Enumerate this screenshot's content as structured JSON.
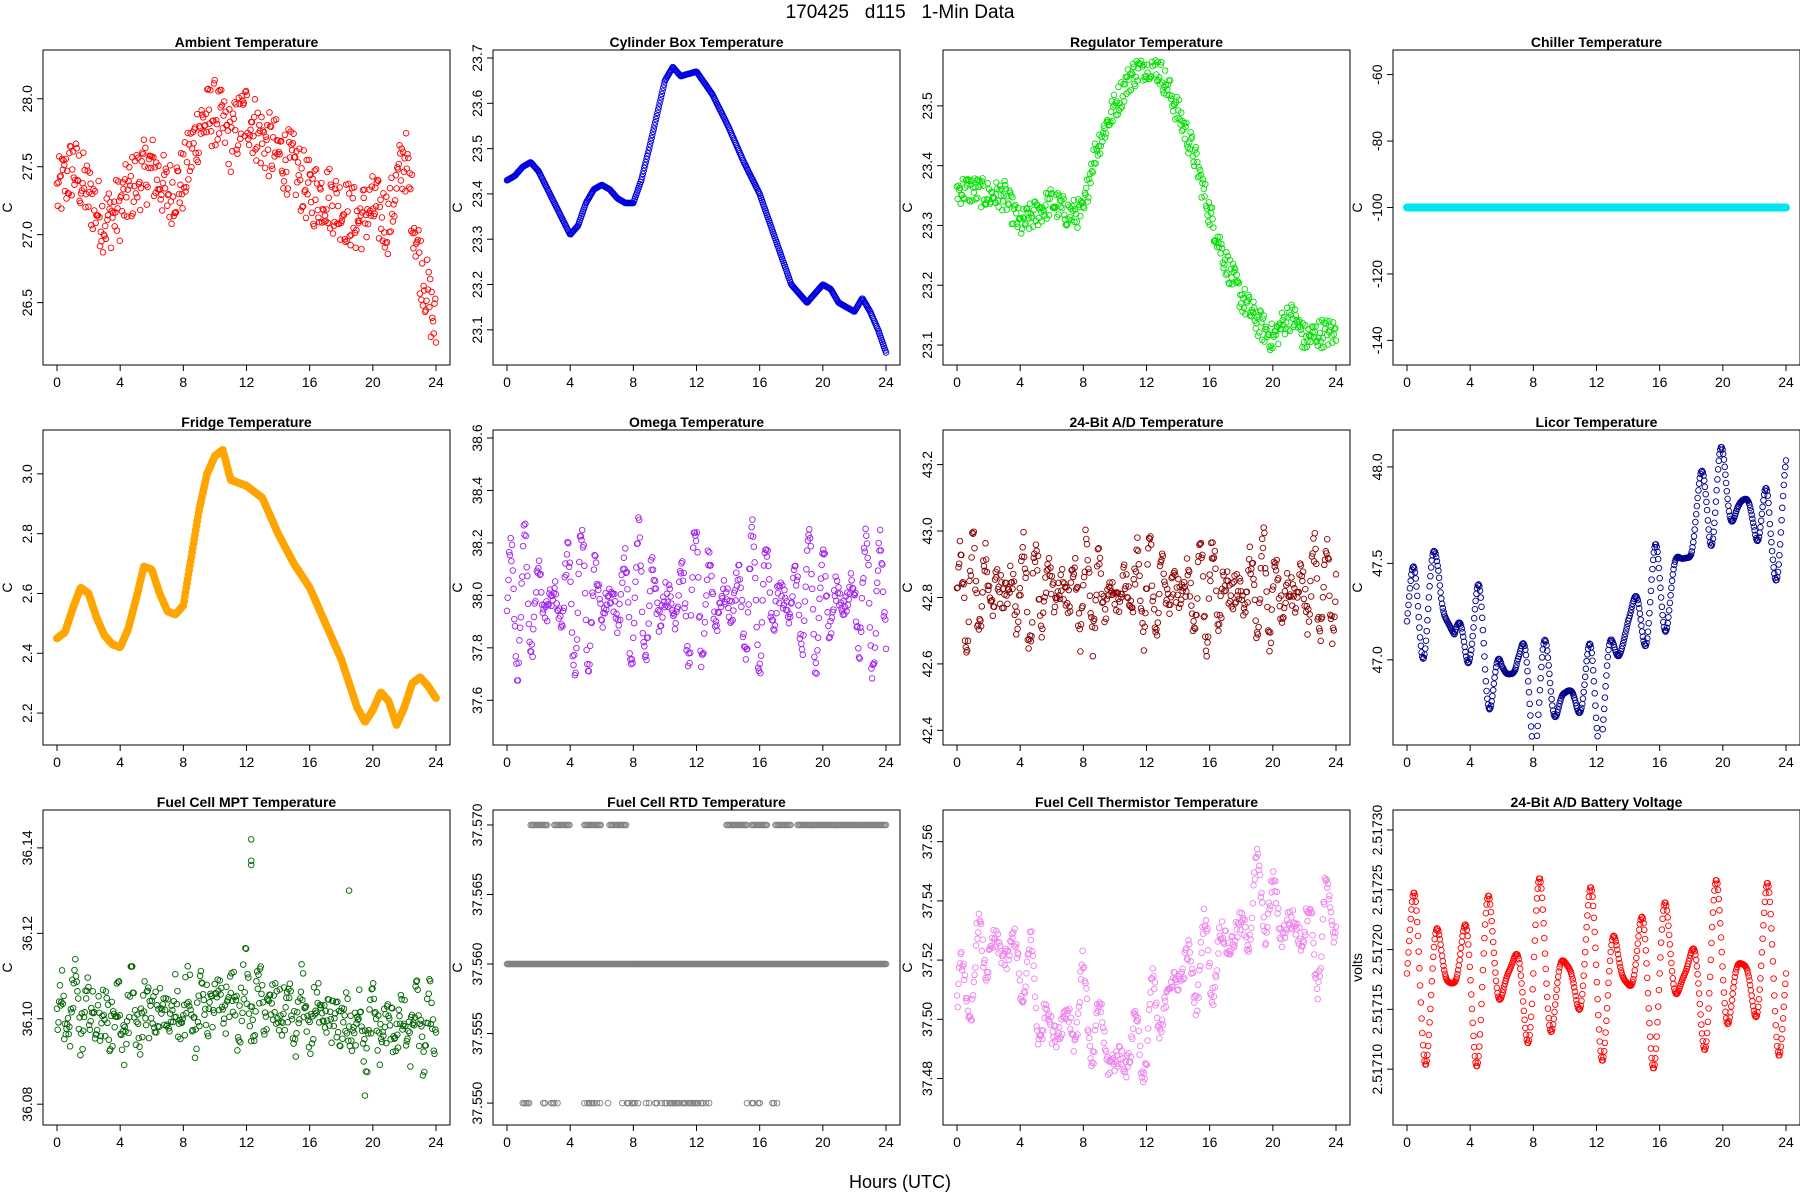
{
  "page": {
    "title": "170425   d115   1-Min Data",
    "xlabel": "Hours (UTC)"
  },
  "chart_data": [
    {
      "type": "scatter",
      "title": "Ambient Temperature",
      "ylabel": "C",
      "color": "#ff0000",
      "marker": "open-circle",
      "xlim": [
        0,
        24
      ],
      "ylim": [
        26.1,
        28.3
      ],
      "xticks": [
        0,
        4,
        8,
        12,
        16,
        20,
        24
      ],
      "yticks": [
        26.5,
        27.0,
        27.5,
        28.0
      ],
      "ytick_labels": [
        "26.5",
        "27.0",
        "27.5",
        "28.0"
      ],
      "x": [
        0,
        1,
        2,
        3,
        4,
        5,
        6,
        7,
        8,
        9,
        10,
        11,
        12,
        13,
        14,
        15,
        16,
        17,
        18,
        19,
        20,
        21,
        22,
        23,
        24
      ],
      "y": [
        27.3,
        27.5,
        27.3,
        27.1,
        27.2,
        27.4,
        27.5,
        27.3,
        27.4,
        27.8,
        27.9,
        27.7,
        27.9,
        27.7,
        27.6,
        27.5,
        27.3,
        27.3,
        27.2,
        27.1,
        27.2,
        27.1,
        27.6,
        26.8,
        26.3
      ],
      "spread": 0.25
    },
    {
      "type": "scatter",
      "title": "Cylinder Box Temperature",
      "ylabel": "C",
      "color": "#0000dd",
      "marker": "open-circle",
      "xlim": [
        0,
        24
      ],
      "ylim": [
        23.04,
        23.7
      ],
      "xticks": [
        0,
        4,
        8,
        12,
        16,
        20,
        24
      ],
      "yticks": [
        23.1,
        23.2,
        23.3,
        23.4,
        23.5,
        23.6,
        23.7
      ],
      "ytick_labels": [
        "23.1",
        "23.2",
        "23.3",
        "23.4",
        "23.5",
        "23.6",
        "23.7"
      ],
      "x": [
        0,
        0.5,
        1,
        1.5,
        2,
        3,
        4,
        4.5,
        5,
        5.5,
        6,
        6.5,
        7,
        7.5,
        8,
        8.5,
        9,
        10,
        10.5,
        11,
        12,
        13,
        14,
        15,
        16,
        17,
        18,
        19,
        19.5,
        20,
        20.5,
        21,
        22,
        22.5,
        23,
        23.5,
        24
      ],
      "y": [
        23.43,
        23.44,
        23.46,
        23.47,
        23.45,
        23.38,
        23.31,
        23.33,
        23.38,
        23.41,
        23.42,
        23.41,
        23.39,
        23.38,
        23.38,
        23.43,
        23.5,
        23.65,
        23.68,
        23.66,
        23.67,
        23.62,
        23.55,
        23.47,
        23.4,
        23.3,
        23.2,
        23.16,
        23.18,
        23.2,
        23.19,
        23.16,
        23.14,
        23.17,
        23.14,
        23.1,
        23.05
      ],
      "spread": 0
    },
    {
      "type": "scatter",
      "title": "Regulator Temperature",
      "ylabel": "C",
      "color": "#00e000",
      "marker": "open-circle",
      "xlim": [
        0,
        24
      ],
      "ylim": [
        23.08,
        23.58
      ],
      "xticks": [
        0,
        4,
        8,
        12,
        16,
        20,
        24
      ],
      "yticks": [
        23.1,
        23.2,
        23.3,
        23.4,
        23.5
      ],
      "ytick_labels": [
        "23.1",
        "23.2",
        "23.3",
        "23.4",
        "23.5"
      ],
      "x": [
        0,
        1,
        2,
        3,
        4,
        5,
        6,
        7,
        8,
        8.5,
        9,
        10,
        11,
        12,
        12.5,
        13,
        14,
        15,
        16,
        17,
        18,
        19,
        20,
        21,
        21.5,
        22,
        23,
        24
      ],
      "y": [
        23.36,
        23.36,
        23.35,
        23.35,
        23.3,
        23.32,
        23.34,
        23.32,
        23.32,
        23.4,
        23.44,
        23.5,
        23.55,
        23.57,
        23.57,
        23.55,
        23.49,
        23.42,
        23.32,
        23.24,
        23.18,
        23.14,
        23.11,
        23.15,
        23.14,
        23.11,
        23.12,
        23.12
      ],
      "spread": 0.025
    },
    {
      "type": "scatter",
      "title": "Chiller Temperature",
      "ylabel": "C",
      "color": "#00e5ee",
      "marker": "filled-circle",
      "xlim": [
        0,
        24
      ],
      "ylim": [
        -145,
        -55
      ],
      "xticks": [
        0,
        4,
        8,
        12,
        16,
        20,
        24
      ],
      "yticks": [
        -140,
        -120,
        -100,
        -80,
        -60
      ],
      "ytick_labels": [
        "-140",
        "-120",
        "-100",
        "-80",
        "-60"
      ],
      "x": [
        0,
        24
      ],
      "y": [
        -100,
        -100
      ],
      "spread": 0
    },
    {
      "type": "scatter",
      "title": "Fridge Temperature",
      "ylabel": "C",
      "color": "#ffa500",
      "marker": "filled-circle",
      "xlim": [
        0,
        24
      ],
      "ylim": [
        2.12,
        3.12
      ],
      "xticks": [
        0,
        4,
        8,
        12,
        16,
        20,
        24
      ],
      "yticks": [
        2.2,
        2.4,
        2.6,
        2.8,
        3.0
      ],
      "ytick_labels": [
        "2.2",
        "2.4",
        "2.6",
        "2.8",
        "3.0"
      ],
      "x": [
        0,
        0.5,
        1,
        1.5,
        2,
        2.5,
        3,
        3.5,
        4,
        4.5,
        5,
        5.5,
        6,
        6.5,
        7,
        7.5,
        8,
        8.5,
        9,
        9.5,
        10,
        10.5,
        11,
        12,
        13,
        14,
        15,
        16,
        17,
        18,
        19,
        19.5,
        20,
        20.5,
        21,
        21.5,
        22,
        22.5,
        23,
        23.5,
        24
      ],
      "y": [
        2.45,
        2.47,
        2.55,
        2.62,
        2.6,
        2.52,
        2.46,
        2.43,
        2.42,
        2.48,
        2.58,
        2.69,
        2.68,
        2.6,
        2.54,
        2.53,
        2.56,
        2.72,
        2.88,
        3.0,
        3.06,
        3.08,
        2.98,
        2.96,
        2.92,
        2.8,
        2.7,
        2.62,
        2.5,
        2.38,
        2.22,
        2.17,
        2.21,
        2.27,
        2.24,
        2.16,
        2.22,
        2.3,
        2.32,
        2.29,
        2.25
      ],
      "spread": 0
    },
    {
      "type": "scatter",
      "title": "Omega Temperature",
      "ylabel": "C",
      "color": "#a020f0",
      "marker": "open-circle",
      "xlim": [
        0,
        24
      ],
      "ylim": [
        37.46,
        38.6
      ],
      "xticks": [
        0,
        4,
        8,
        12,
        16,
        20,
        24
      ],
      "yticks": [
        37.6,
        37.8,
        38.0,
        38.2,
        38.4,
        38.6
      ],
      "ytick_labels": [
        "37.6",
        "37.8",
        "38.0",
        "38.2",
        "38.4",
        "38.6"
      ],
      "x": [
        0,
        24
      ],
      "y": [
        37.98,
        37.98
      ],
      "osc": 0.28,
      "period": 0.9,
      "spread": 0.05
    },
    {
      "type": "scatter",
      "title": "24-Bit A/D Temperature",
      "ylabel": "C",
      "color": "#8b0000",
      "marker": "open-circle",
      "xlim": [
        0,
        24
      ],
      "ylim": [
        42.38,
        43.28
      ],
      "xticks": [
        0,
        4,
        8,
        12,
        16,
        20,
        24
      ],
      "yticks": [
        42.4,
        42.6,
        42.8,
        43.0,
        43.2
      ],
      "ytick_labels": [
        "42.4",
        "42.6",
        "42.8",
        "43.0",
        "43.2"
      ],
      "x": [
        0,
        24
      ],
      "y": [
        42.82,
        42.82
      ],
      "osc": 0.16,
      "period": 0.8,
      "spread": 0.05
    },
    {
      "type": "scatter",
      "title": "Licor Temperature",
      "ylabel": "C",
      "color": "#00008b",
      "marker": "open-circle",
      "xlim": [
        0,
        24
      ],
      "ylim": [
        46.6,
        48.15
      ],
      "xticks": [
        0,
        4,
        8,
        12,
        16,
        20,
        24
      ],
      "yticks": [
        47.0,
        47.5,
        48.0
      ],
      "ytick_labels": [
        "47.0",
        "47.5",
        "48.0"
      ],
      "x": [
        0,
        1,
        2,
        3,
        4,
        5,
        6,
        7,
        8,
        9,
        10,
        11,
        12,
        13,
        14,
        15,
        16,
        17,
        18,
        19,
        20,
        21,
        22,
        23,
        24
      ],
      "y": [
        47.2,
        47.3,
        47.4,
        47.1,
        47.2,
        47.0,
        46.9,
        47.0,
        46.8,
        46.85,
        46.8,
        46.85,
        46.8,
        46.95,
        47.2,
        47.3,
        47.3,
        47.45,
        47.6,
        47.9,
        47.85,
        47.8,
        47.8,
        47.55,
        47.9
      ],
      "osc": 0.3,
      "period": 1.4,
      "spread": 0
    },
    {
      "type": "scatter",
      "title": "Fuel Cell MPT Temperature",
      "ylabel": "C",
      "color": "#006400",
      "marker": "open-circle",
      "xlim": [
        0,
        24
      ],
      "ylim": [
        36.077,
        36.147
      ],
      "xticks": [
        0,
        4,
        8,
        12,
        16,
        20,
        24
      ],
      "yticks": [
        36.08,
        36.1,
        36.12,
        36.14
      ],
      "ytick_labels": [
        "36.08",
        "36.10",
        "36.12",
        "36.14"
      ],
      "x": [
        0,
        4,
        8,
        12,
        16,
        20,
        24
      ],
      "y": [
        36.102,
        36.1,
        36.102,
        36.104,
        36.1,
        36.098,
        36.098
      ],
      "osc": 0.007,
      "period": 0.9,
      "spread": 0.006,
      "outliers": [
        [
          12.3,
          36.142
        ],
        [
          12.3,
          36.137
        ],
        [
          12.3,
          36.136
        ],
        [
          18.5,
          36.13
        ],
        [
          19.5,
          36.082
        ]
      ]
    },
    {
      "type": "scatter",
      "title": "Fuel Cell RTD Temperature",
      "ylabel": "C",
      "color": "#808080",
      "marker": "open-circle",
      "xlim": [
        0,
        24
      ],
      "ylim": [
        37.549,
        37.5705
      ],
      "xticks": [
        0,
        4,
        8,
        12,
        16,
        20,
        24
      ],
      "yticks": [
        37.55,
        37.555,
        37.56,
        37.565,
        37.57
      ],
      "ytick_labels": [
        "37.550",
        "37.555",
        "37.560",
        "37.565",
        "37.570"
      ],
      "levels": [
        37.55,
        37.56,
        37.57
      ],
      "upper_ranges": [
        [
          1.5,
          2.6
        ],
        [
          3.0,
          4.0
        ],
        [
          4.9,
          6.0
        ],
        [
          6.5,
          7.6
        ],
        [
          13.9,
          15.2
        ],
        [
          15.5,
          16.5
        ],
        [
          17.0,
          18.0
        ],
        [
          18.4,
          24.0
        ]
      ],
      "lower_ranges": [
        [
          1.0,
          1.5
        ],
        [
          2.2,
          3.4
        ],
        [
          4.8,
          6.5
        ],
        [
          7.3,
          8.4
        ],
        [
          8.6,
          12.8
        ],
        [
          15.2,
          16.1
        ],
        [
          16.5,
          17.2
        ]
      ]
    },
    {
      "type": "scatter",
      "title": "Fuel Cell Thermistor Temperature",
      "ylabel": "C",
      "color": "#ee82ee",
      "marker": "open-circle",
      "xlim": [
        0,
        24
      ],
      "ylim": [
        37.467,
        37.568
      ],
      "xticks": [
        0,
        4,
        8,
        12,
        16,
        20,
        24
      ],
      "yticks": [
        37.48,
        37.5,
        37.52,
        37.54,
        37.56
      ],
      "ytick_labels": [
        "37.48",
        "37.50",
        "37.52",
        "37.54",
        "37.56"
      ],
      "x": [
        0,
        2,
        4,
        6,
        8,
        10,
        12,
        14,
        16,
        18,
        19.5,
        20,
        22,
        23,
        24
      ],
      "y": [
        37.505,
        37.525,
        37.52,
        37.495,
        37.505,
        37.485,
        37.495,
        37.515,
        37.52,
        37.53,
        37.545,
        37.535,
        37.53,
        37.525,
        37.54
      ],
      "osc": 0.016,
      "period": 1.1,
      "spread": 0.004
    },
    {
      "type": "scatter",
      "title": "24-Bit A/D Battery Voltage",
      "ylabel": "volts",
      "color": "#ff0000",
      "marker": "open-circle",
      "xlim": [
        0,
        24
      ],
      "ylim": [
        2.51706,
        2.51731
      ],
      "xticks": [
        0,
        4,
        8,
        12,
        16,
        20,
        24
      ],
      "yticks": [
        2.5171,
        2.51715,
        2.5172,
        2.51725,
        2.5173
      ],
      "ytick_labels": [
        "2.51710",
        "2.51715",
        "2.51720",
        "2.51725",
        "2.51730"
      ],
      "x": [
        0,
        24
      ],
      "y": [
        2.51718,
        2.51718
      ],
      "osc": 8e-05,
      "period": 1.6,
      "spread": 0
    }
  ]
}
